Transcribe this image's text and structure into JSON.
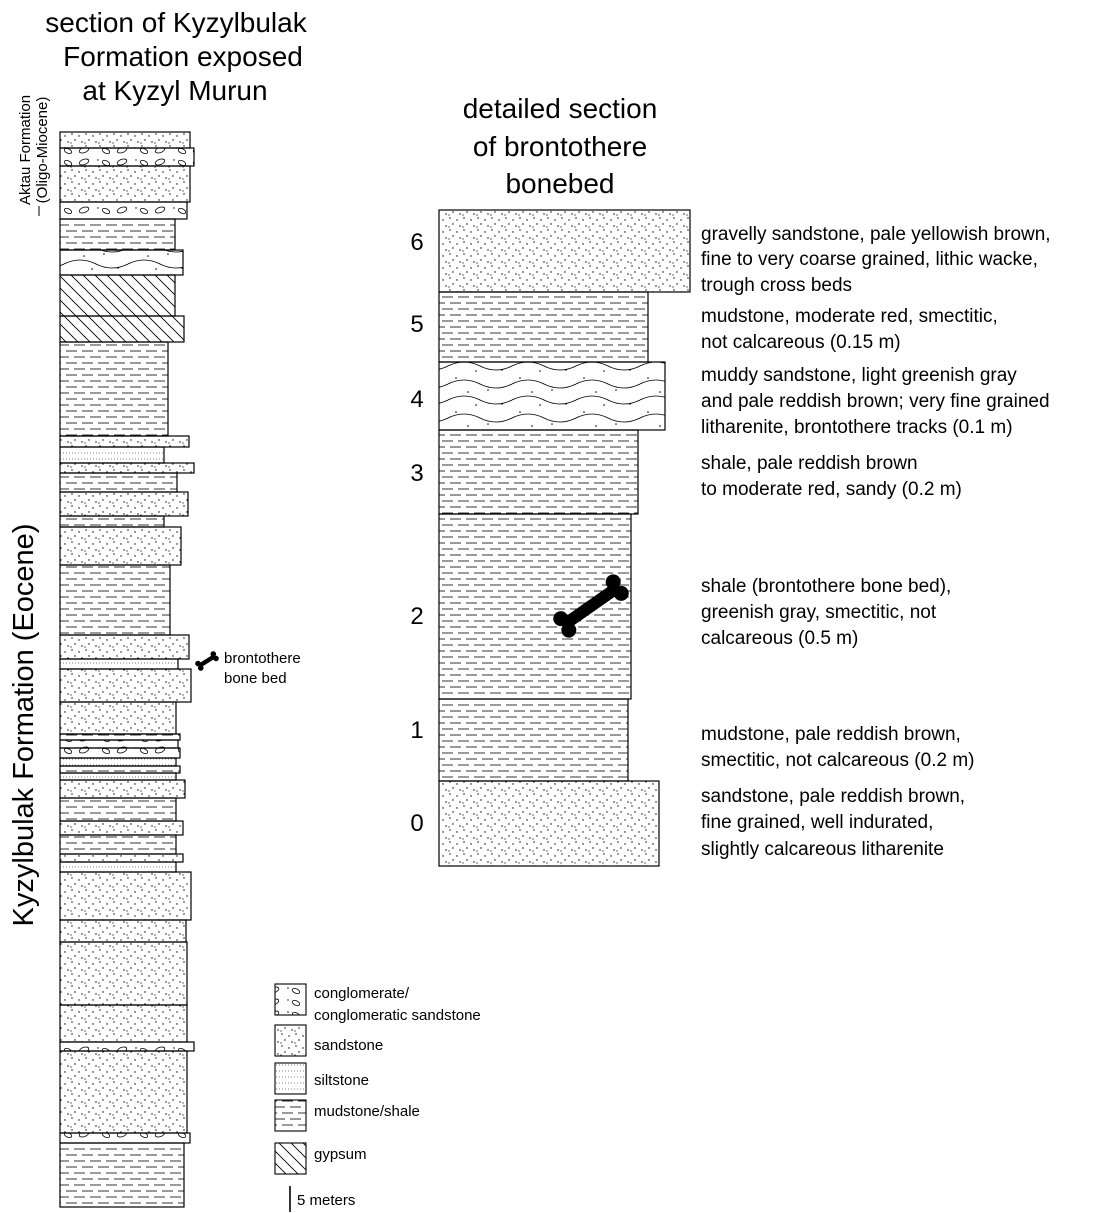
{
  "left_title": {
    "line1": "section of Kyzylbulak",
    "line2": "Formation exposed",
    "line3": "at Kyzyl Murun"
  },
  "aktau_label": {
    "line1": "Aktau Formation",
    "line2": "(Oligo-Miocene)"
  },
  "kyzylbulak_label": "Kyzylbulak Formation (Eocene)",
  "bone_marker": {
    "line1": "brontothere",
    "line2": "bone bed"
  },
  "right_title": {
    "line1": "detailed section",
    "line2": "of brontothere",
    "line3": "bonebed"
  },
  "detail_units": [
    {
      "number": "6",
      "lithology": "sandstone",
      "lines": [
        "gravelly sandstone, pale yellowish brown,",
        "fine to very coarse grained, lithic wacke,",
        "trough cross beds"
      ]
    },
    {
      "number": "5",
      "lithology": "mudstone/shale",
      "lines": [
        "mudstone, moderate red, smectitic,",
        "not calcareous (0.15 m)"
      ]
    },
    {
      "number": "4",
      "lithology": "muddy sandstone",
      "lines": [
        "muddy sandstone, light greenish gray",
        "and pale reddish brown; very fine grained",
        "litharenite, brontothere tracks (0.1 m)"
      ]
    },
    {
      "number": "3",
      "lithology": "mudstone/shale",
      "lines": [
        "shale, pale reddish brown",
        "to moderate red, sandy (0.2 m)"
      ]
    },
    {
      "number": "2",
      "lithology": "mudstone/shale",
      "lines": [
        "shale (brontothere bone bed),",
        "greenish gray, smectitic, not",
        "calcareous (0.5 m)"
      ]
    },
    {
      "number": "1",
      "lithology": "mudstone/shale",
      "lines": [
        "mudstone, pale reddish brown,",
        "smectitic, not calcareous (0.2 m)"
      ]
    },
    {
      "number": "0",
      "lithology": "sandstone",
      "lines": [
        "sandstone, pale reddish brown,",
        "fine grained, well indurated,",
        "slightly calcareous litharenite"
      ]
    }
  ],
  "legend": [
    {
      "icon": "conglomerate-pattern-icon",
      "lines": [
        "conglomerate/",
        "conglomeratic sandstone"
      ]
    },
    {
      "icon": "sandstone-pattern-icon",
      "lines": [
        "sandstone"
      ]
    },
    {
      "icon": "siltstone-pattern-icon",
      "lines": [
        "siltstone"
      ]
    },
    {
      "icon": "mudstone-pattern-icon",
      "lines": [
        "mudstone/shale"
      ]
    },
    {
      "icon": "gypsum-pattern-icon",
      "lines": [
        "gypsum"
      ]
    }
  ],
  "scale_label": "5 meters",
  "colors": {
    "ink": "#000000",
    "paper": "#ffffff"
  }
}
